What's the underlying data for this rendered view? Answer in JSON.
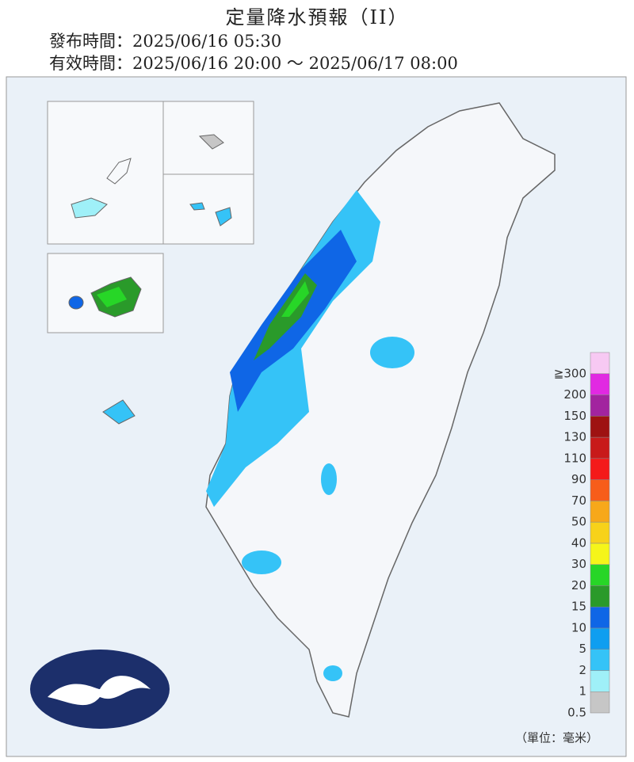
{
  "header": {
    "title": "定量降水預報（II）",
    "issued": "發布時間：2025/06/16 05:30",
    "valid": "有效時間：2025/06/16 20:00 ～ 2025/06/17 08:00"
  },
  "legend": {
    "unit": "（單位：毫米）",
    "levels": [
      {
        "label": "0.5",
        "color": "#c6c6c6"
      },
      {
        "label": "1",
        "color": "#9ff0f8"
      },
      {
        "label": "2",
        "color": "#35c3f7"
      },
      {
        "label": "5",
        "color": "#0f9ef0"
      },
      {
        "label": "10",
        "color": "#0f66e6"
      },
      {
        "label": "15",
        "color": "#2a9a2a"
      },
      {
        "label": "20",
        "color": "#27d627"
      },
      {
        "label": "30",
        "color": "#f5f51a"
      },
      {
        "label": "40",
        "color": "#f7d21a"
      },
      {
        "label": "50",
        "color": "#f7a81a"
      },
      {
        "label": "70",
        "color": "#f75d1a"
      },
      {
        "label": "90",
        "color": "#f41a1a"
      },
      {
        "label": "110",
        "color": "#c81a1a"
      },
      {
        "label": "130",
        "color": "#9e1212"
      },
      {
        "label": "150",
        "color": "#a2249f"
      },
      {
        "label": "200",
        "color": "#e129e2"
      },
      {
        "label": "≧300",
        "color": "#f7c9f3"
      }
    ]
  }
}
